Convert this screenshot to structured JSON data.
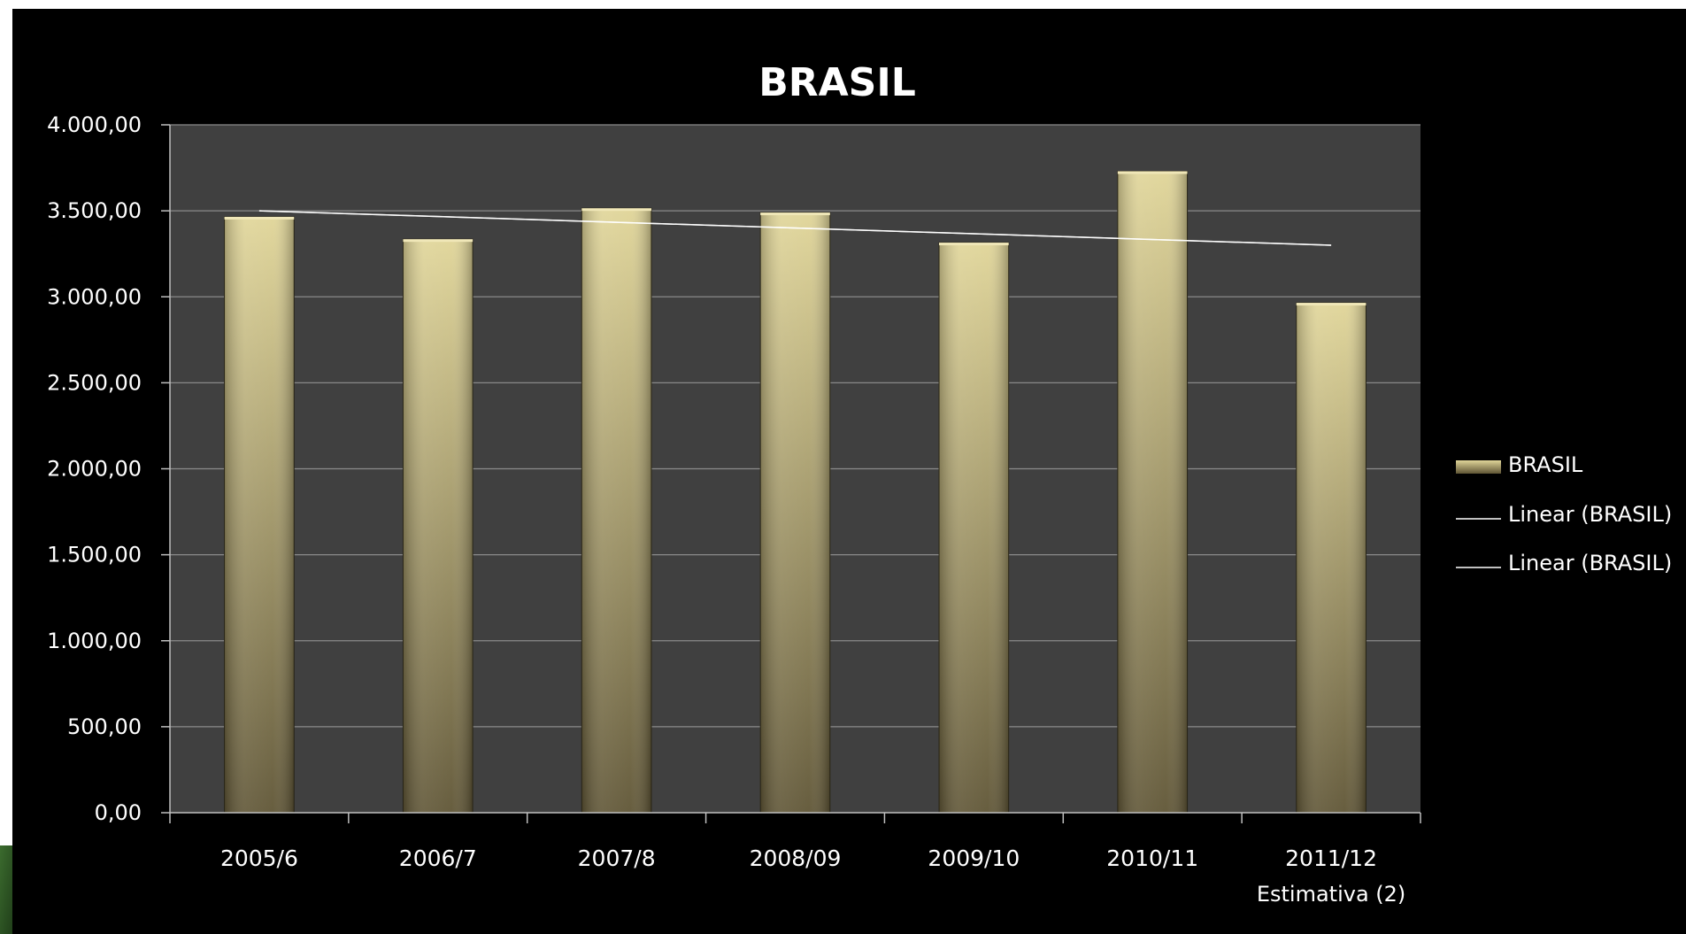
{
  "chart_data": {
    "type": "bar",
    "title": "BRASIL",
    "categories": [
      "2005/6",
      "2006/7",
      "2007/8",
      "2008/09",
      "2009/10",
      "2010/11",
      "2011/12"
    ],
    "category_sublabels": [
      "",
      "",
      "",
      "",
      "",
      "",
      "Estimativa (2)"
    ],
    "series": [
      {
        "name": "BRASIL",
        "values": [
          3465,
          3335,
          3515,
          3490,
          3315,
          3730,
          2965
        ]
      }
    ],
    "trendlines": [
      {
        "name": "Linear (BRASIL)",
        "type": "linear",
        "start": 3500,
        "end": 3300
      },
      {
        "name": "Linear (BRASIL)",
        "type": "linear",
        "start": 3500,
        "end": 3300
      }
    ],
    "ylim": [
      0,
      4000
    ],
    "y_ticks": [
      0,
      500,
      1000,
      1500,
      2000,
      2500,
      3000,
      3500,
      4000
    ],
    "y_tick_labels": [
      "0,00",
      "500,00",
      "1.000,00",
      "1.500,00",
      "2.000,00",
      "2.500,00",
      "3.000,00",
      "3.500,00",
      "4.000,00"
    ],
    "xlabel": "",
    "ylabel": "",
    "grid": true,
    "legend_position": "right",
    "colors": {
      "background": "#000000",
      "plot_area": "#404040",
      "gridline": "#8a8a8a",
      "bar_top": "#e0d598",
      "bar_bottom": "#5f5535",
      "trendline": "#ffffff",
      "text": "#ffffff"
    }
  }
}
